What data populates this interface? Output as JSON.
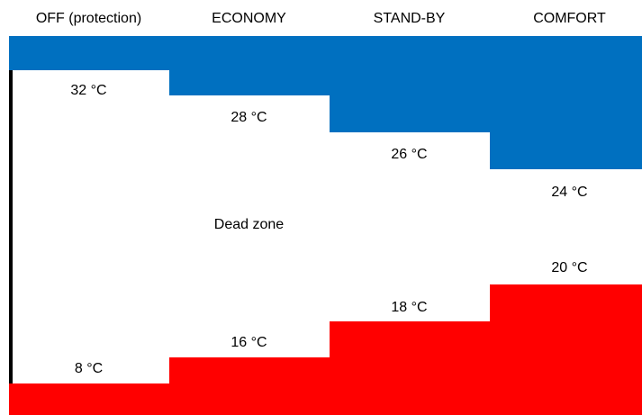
{
  "modes": [
    "OFF (protection)",
    "ECONOMY",
    "STAND-BY",
    "COMFORT"
  ],
  "cooling_setpoints": [
    "32 °C",
    "28 °C",
    "26 °C",
    "24 °C"
  ],
  "heating_setpoints": [
    "8 °C",
    "16 °C",
    "18 °C",
    "20 °C"
  ],
  "dead_zone_label": "Dead zone",
  "colors": {
    "cooling": "#0070c0",
    "heating": "#ff0000",
    "axis": "#000000"
  }
}
